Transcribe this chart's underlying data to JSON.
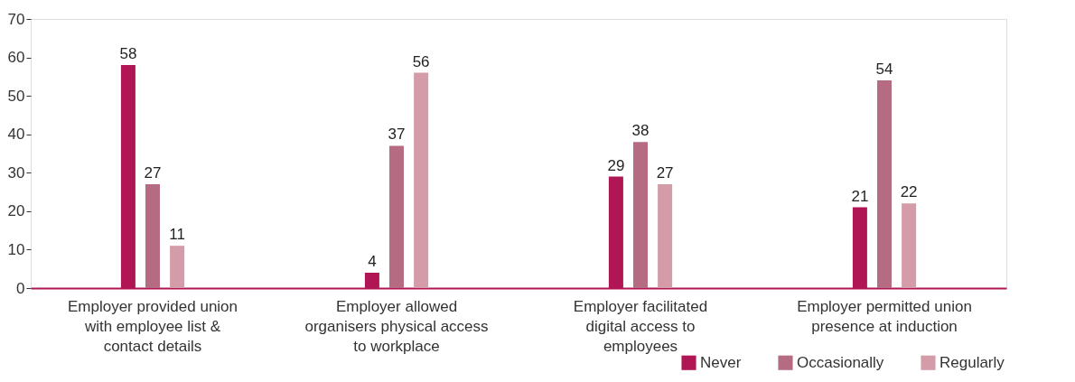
{
  "chart_data": {
    "type": "bar",
    "categories": [
      "Employer provided union with employee list & contact details",
      "Employer allowed organisers physical access to workplace",
      "Employer facilitated digital access to employees",
      "Employer permitted union presence at induction"
    ],
    "series": [
      {
        "name": "Never",
        "color": "#b01554",
        "values": [
          58,
          4,
          29,
          21
        ]
      },
      {
        "name": "Occasionally",
        "color": "#b56c82",
        "values": [
          27,
          37,
          38,
          54
        ]
      },
      {
        "name": "Regularly",
        "color": "#d49ba8",
        "values": [
          11,
          56,
          27,
          22
        ]
      }
    ],
    "ylim": [
      0,
      70
    ],
    "yticks": [
      0,
      10,
      20,
      30,
      40,
      50,
      60,
      70
    ],
    "grid": false,
    "legend": "bottom right",
    "data_labels": true
  }
}
